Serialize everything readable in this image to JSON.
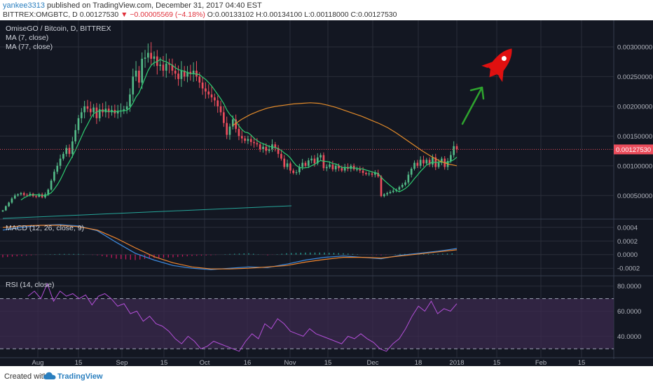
{
  "header": {
    "author": "yankee3313",
    "published": "published on TradingView.com, December 31, 2017 04:40 EST",
    "symbol": "BITTREX:OMGBTC, D",
    "last": "0.00127530",
    "change": "▼ −0.00005569 (−4.18%)",
    "ohlc": "O:0.00133102 H:0.00134100 L:0.00118000 C:0.00127530"
  },
  "legend": {
    "title": "OmiseGO / Bitcoin, D, BITTREX",
    "ma7": "MA (7, close)",
    "ma77": "MA (77, close)",
    "macd": "MACD (12, 26, close, 9)",
    "rsi": "RSI (14, close)"
  },
  "price_label": "0.00127530",
  "footer": {
    "created": "Created with",
    "brand": "TradingView"
  },
  "colors": {
    "background": "#131722",
    "up": "#53b987",
    "down": "#eb4d5c",
    "ma7": "#2ecc71",
    "ma77": "#e38b2a",
    "macd": "#3d8be0",
    "signal": "#f0862e",
    "rsi": "#b34fd8",
    "rsi_band": "#3b2a4d",
    "arrow": "#2ea32e",
    "rocket": "#e01010"
  },
  "chart_data": {
    "type": "candlestick",
    "x_ticks": [
      "Aug",
      "15",
      "Sep",
      "15",
      "Oct",
      "16",
      "Nov",
      "15",
      "Dec",
      "18",
      "2018",
      "15",
      "Feb",
      "15"
    ],
    "price_axis": {
      "ticks": [
        "0.00050000",
        "0.00100000",
        "0.00150000",
        "0.00200000",
        "0.00250000",
        "0.00300000"
      ],
      "range": [
        0.00015,
        0.0034
      ]
    },
    "macd_axis": {
      "ticks": [
        "0.0004",
        "0.0002",
        "0.0000",
        "-0.0002"
      ],
      "range": [
        -0.00028,
        0.00048
      ]
    },
    "rsi_axis": {
      "ticks": [
        "80.0000",
        "60.0000",
        "40.0000"
      ],
      "bands": [
        30,
        70
      ],
      "range": [
        24,
        86
      ]
    },
    "closes": [
      0.00025,
      0.00032,
      0.00038,
      0.00045,
      0.0005,
      0.00052,
      0.00054,
      0.00051,
      0.0005,
      0.00053,
      0.00049,
      0.00048,
      0.00052,
      0.00047,
      0.00052,
      0.0006,
      0.00075,
      0.0009,
      0.001,
      0.00112,
      0.0012,
      0.0013,
      0.0012,
      0.00141,
      0.0016,
      0.0018,
      0.0019,
      0.002,
      0.00196,
      0.0019,
      0.00198,
      0.0018,
      0.00195,
      0.0019,
      0.00196,
      0.0019,
      0.00194,
      0.00188,
      0.00192,
      0.00193,
      0.00195,
      0.002,
      0.0022,
      0.0025,
      0.0026,
      0.0024,
      0.0028,
      0.00282,
      0.0029,
      0.0028,
      0.00284,
      0.00268,
      0.0027,
      0.0026,
      0.00272,
      0.0027,
      0.0026,
      0.00255,
      0.00246,
      0.0026,
      0.0025,
      0.00258,
      0.00255,
      0.0026,
      0.0025,
      0.0024,
      0.0023,
      0.00225,
      0.0022,
      0.00215,
      0.0021,
      0.002,
      0.0019,
      0.00172,
      0.00152,
      0.00166,
      0.00178,
      0.00162,
      0.0015,
      0.00146,
      0.00142,
      0.00145,
      0.0014,
      0.00138,
      0.00136,
      0.00128,
      0.00132,
      0.00125,
      0.00128,
      0.00136,
      0.0013,
      0.0012,
      0.00112,
      0.00098,
      0.00104,
      0.00092,
      0.00088,
      0.00089,
      0.00098,
      0.00105,
      0.001,
      0.00109,
      0.00112,
      0.00104,
      0.00114,
      0.00118,
      0.00096,
      0.00098,
      0.00102,
      0.00094,
      0.001,
      0.00096,
      0.00092,
      0.00098,
      0.00095,
      0.001,
      0.00094,
      0.00094,
      0.00092,
      0.00088,
      0.00086,
      0.00087,
      0.00085,
      0.00088,
      0.00082,
      0.00049,
      0.00052,
      0.00054,
      0.00056,
      0.00058,
      0.0006,
      0.00064,
      0.00068,
      0.00072,
      0.00085,
      0.00095,
      0.00105,
      0.001,
      0.0011,
      0.00104,
      0.0011,
      0.00102,
      0.00114,
      0.00098,
      0.00105,
      0.00112,
      0.00098,
      0.00108,
      0.00118,
      0.00133,
      0.0012753
    ],
    "ma77": {
      "start_index": 76,
      "values": [
        0.00168,
        0.00178,
        0.00186,
        0.00192,
        0.00197,
        0.002,
        0.00202,
        0.00204,
        0.00205,
        0.00206,
        0.00205,
        0.00202,
        0.00198,
        0.00193,
        0.00188,
        0.00183,
        0.00177,
        0.00171,
        0.00164,
        0.00155,
        0.00145,
        0.00135,
        0.00125,
        0.00116,
        0.00108,
        0.00103,
        0.001
      ]
    },
    "macd_series": [
      0.00036,
      0.0004,
      0.00043,
      0.00044,
      0.00042,
      0.00035,
      0.00018,
      2e-05,
      -8e-05,
      -0.00016,
      -0.0002,
      -0.00022,
      -0.0002,
      -0.00018,
      -0.00019,
      -0.00014,
      -8e-05,
      -4e-05,
      -2e-05,
      -4e-05,
      -6e-05,
      -1e-05,
      2e-05,
      5e-05,
      9e-05
    ],
    "signal_series": [
      0.0004,
      0.00042,
      0.00043,
      0.00043,
      0.00041,
      0.00036,
      0.00024,
      0.0001,
      -3e-05,
      -0.00012,
      -0.00018,
      -0.00021,
      -0.00021,
      -0.0002,
      -0.00018,
      -0.00016,
      -0.00011,
      -7e-05,
      -4e-05,
      -4e-05,
      -5e-05,
      -2e-05,
      1e-05,
      4e-05,
      7e-05
    ],
    "rsi_series": [
      72,
      76,
      70,
      82,
      68,
      76,
      72,
      74,
      70,
      73,
      65,
      72,
      74,
      70,
      64,
      66,
      58,
      60,
      52,
      56,
      50,
      48,
      44,
      38,
      34,
      40,
      36,
      30,
      32,
      36,
      34,
      32,
      30,
      28,
      36,
      42,
      38,
      50,
      46,
      54,
      50,
      44,
      42,
      40,
      46,
      42,
      40,
      38,
      36,
      34,
      40,
      38,
      42,
      38,
      35,
      30,
      28,
      34,
      38,
      46,
      56,
      64,
      60,
      68,
      58,
      62,
      60,
      66
    ]
  }
}
